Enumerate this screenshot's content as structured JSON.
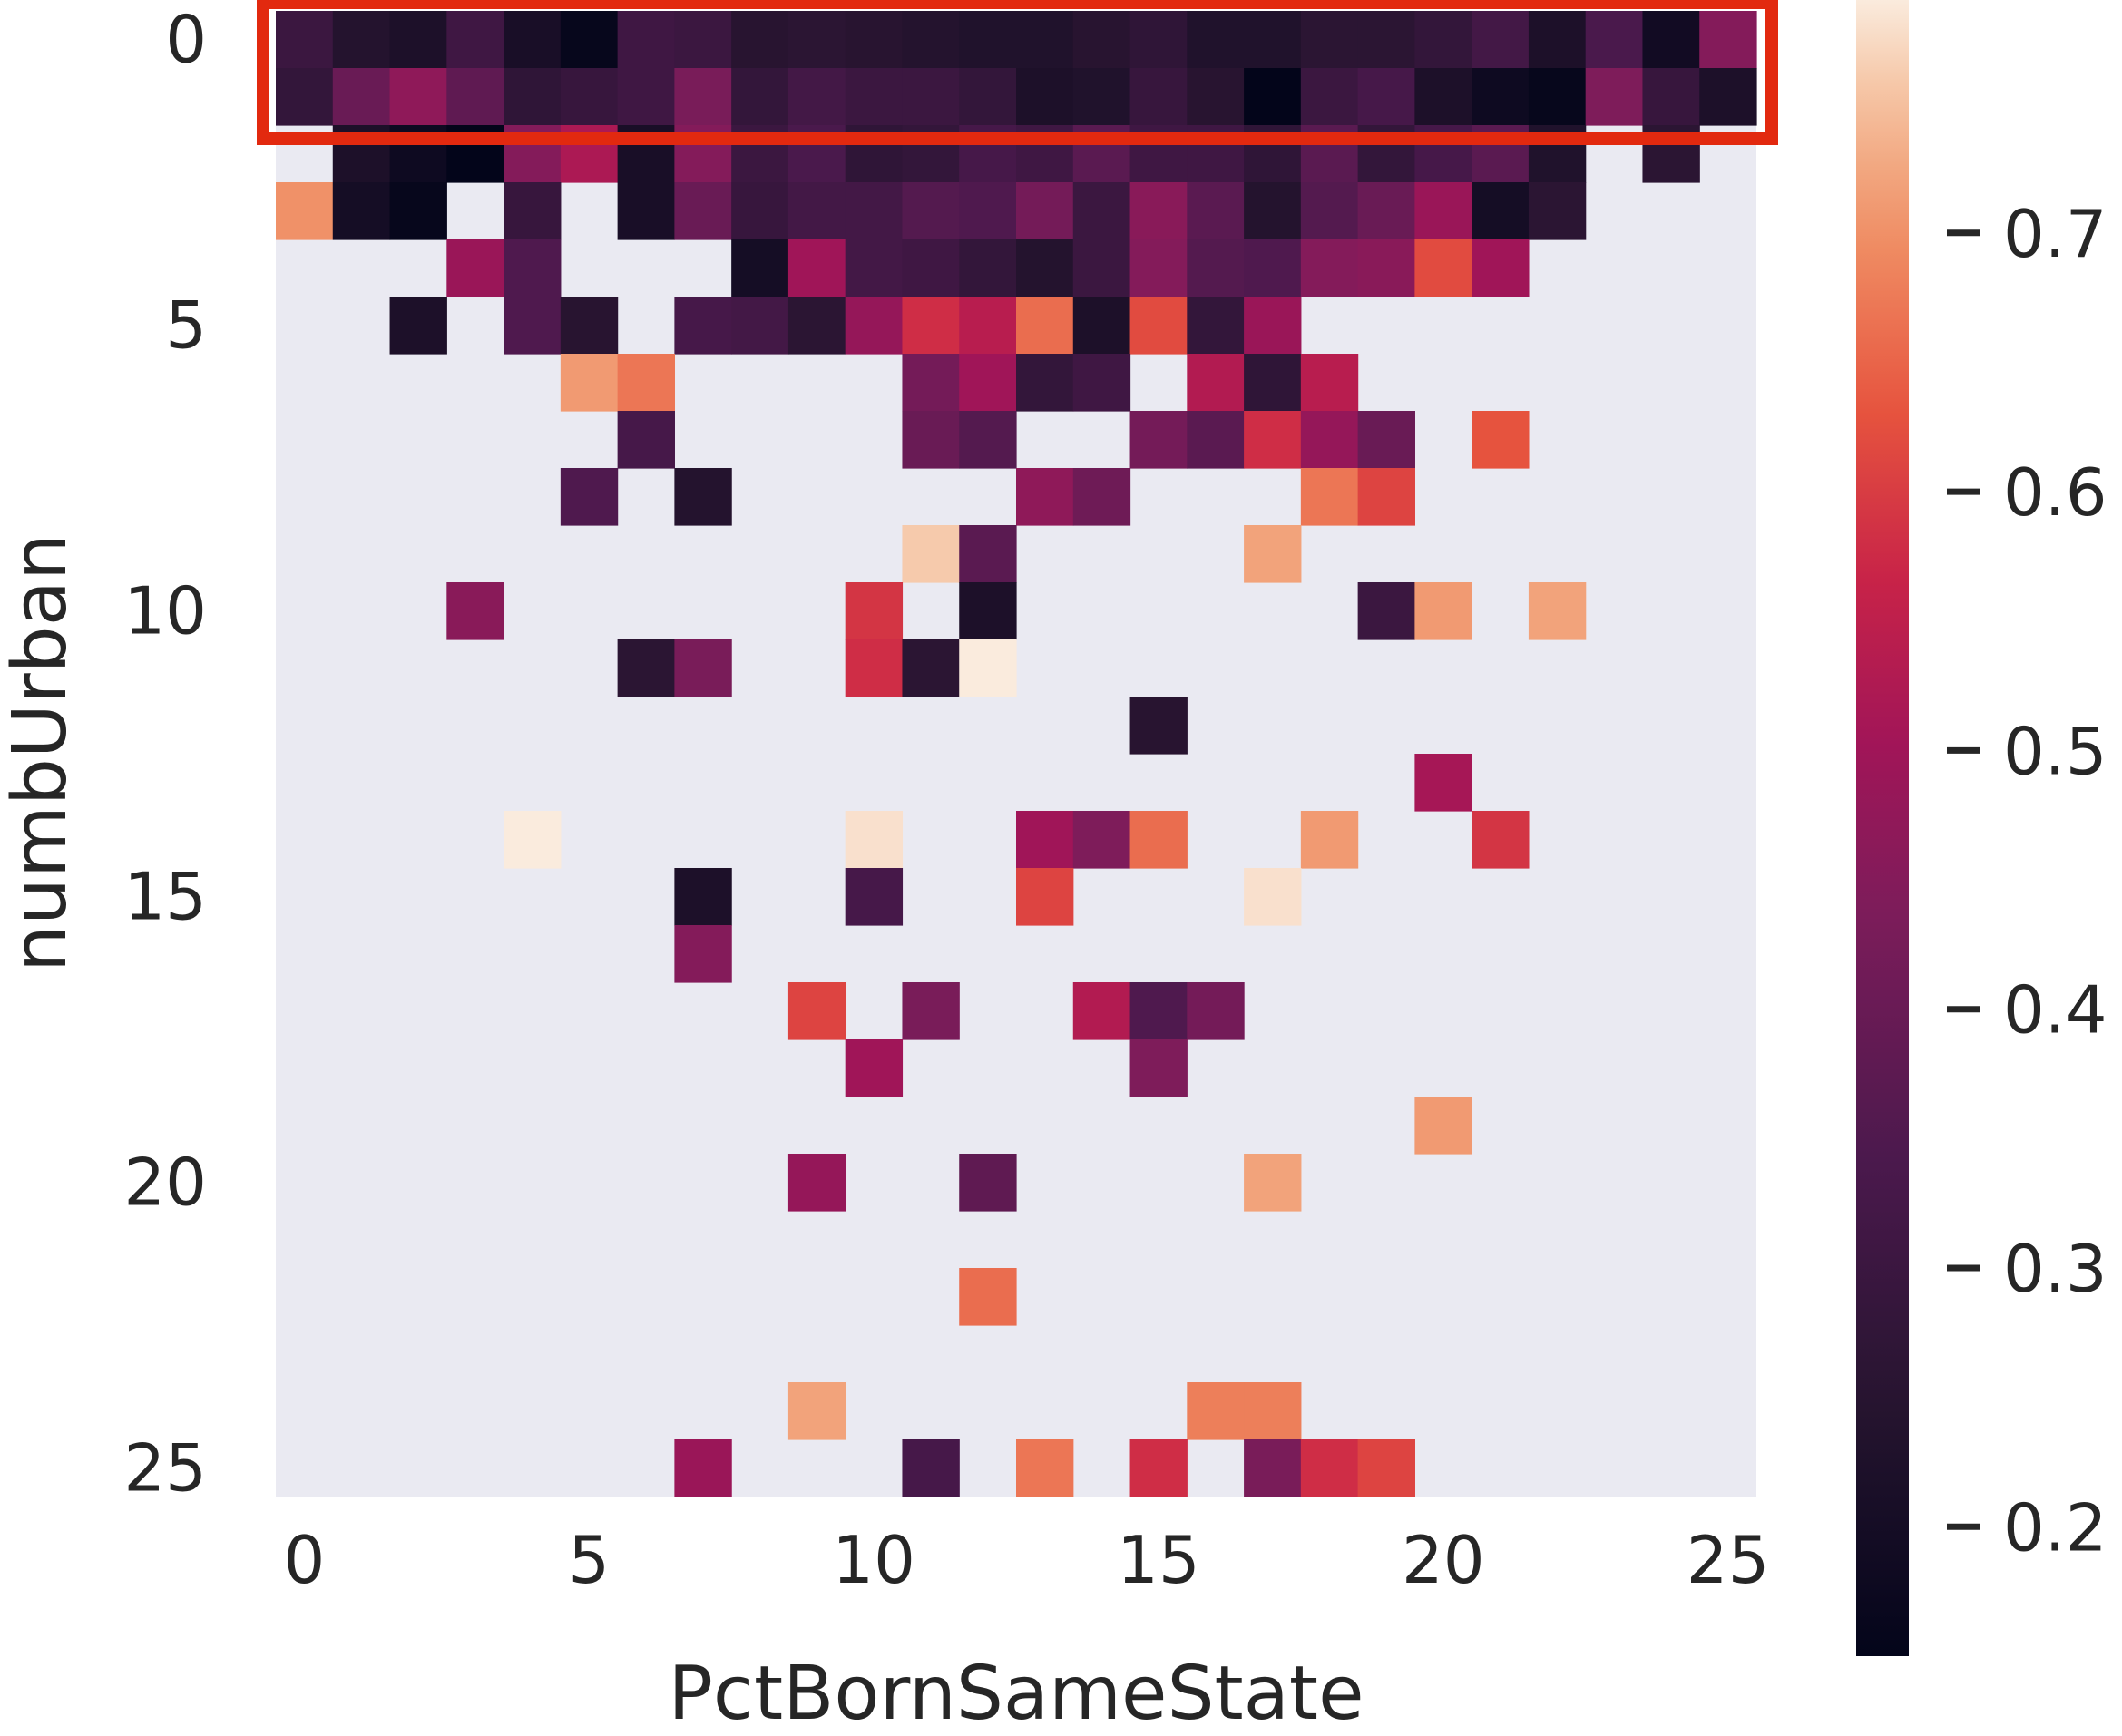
{
  "chart_data": {
    "type": "heatmap",
    "xlabel": "PctBornSameState",
    "ylabel": "numbUrban",
    "x_ticks": [
      0,
      5,
      10,
      15,
      20,
      25
    ],
    "y_ticks": [
      0,
      5,
      10,
      15,
      20,
      25
    ],
    "colorbar": {
      "ticks": [
        0.2,
        0.3,
        0.4,
        0.5,
        0.6,
        0.7
      ],
      "tick_labels": [
        "0.2",
        "0.3",
        "0.4",
        "0.5",
        "0.6",
        "0.7"
      ],
      "range": [
        0.15,
        0.79
      ],
      "colormap": "rocket"
    },
    "grid": false,
    "missing_color": "#eaeaf2",
    "highlight": {
      "rows": [
        0,
        1
      ],
      "color": "#e2290f",
      "label": ""
    },
    "n_cols": 26,
    "n_rows": 26,
    "cells": [
      {
        "x": 0,
        "y": 0,
        "v": 0.3
      },
      {
        "x": 1,
        "y": 0,
        "v": 0.24
      },
      {
        "x": 2,
        "y": 0,
        "v": 0.22
      },
      {
        "x": 3,
        "y": 0,
        "v": 0.31
      },
      {
        "x": 4,
        "y": 0,
        "v": 0.21
      },
      {
        "x": 5,
        "y": 0,
        "v": 0.16
      },
      {
        "x": 6,
        "y": 0,
        "v": 0.31
      },
      {
        "x": 7,
        "y": 0,
        "v": 0.3
      },
      {
        "x": 8,
        "y": 0,
        "v": 0.25
      },
      {
        "x": 9,
        "y": 0,
        "v": 0.26
      },
      {
        "x": 10,
        "y": 0,
        "v": 0.25
      },
      {
        "x": 11,
        "y": 0,
        "v": 0.24
      },
      {
        "x": 12,
        "y": 0,
        "v": 0.23
      },
      {
        "x": 13,
        "y": 0,
        "v": 0.23
      },
      {
        "x": 14,
        "y": 0,
        "v": 0.25
      },
      {
        "x": 15,
        "y": 0,
        "v": 0.27
      },
      {
        "x": 16,
        "y": 0,
        "v": 0.23
      },
      {
        "x": 17,
        "y": 0,
        "v": 0.23
      },
      {
        "x": 18,
        "y": 0,
        "v": 0.26
      },
      {
        "x": 19,
        "y": 0,
        "v": 0.26
      },
      {
        "x": 20,
        "y": 0,
        "v": 0.28
      },
      {
        "x": 21,
        "y": 0,
        "v": 0.32
      },
      {
        "x": 22,
        "y": 0,
        "v": 0.22
      },
      {
        "x": 23,
        "y": 0,
        "v": 0.34
      },
      {
        "x": 24,
        "y": 0,
        "v": 0.19
      },
      {
        "x": 25,
        "y": 0,
        "v": 0.45
      },
      {
        "x": 0,
        "y": 1,
        "v": 0.28
      },
      {
        "x": 1,
        "y": 1,
        "v": 0.4
      },
      {
        "x": 2,
        "y": 1,
        "v": 0.47
      },
      {
        "x": 3,
        "y": 1,
        "v": 0.38
      },
      {
        "x": 4,
        "y": 1,
        "v": 0.27
      },
      {
        "x": 5,
        "y": 1,
        "v": 0.29
      },
      {
        "x": 6,
        "y": 1,
        "v": 0.31
      },
      {
        "x": 7,
        "y": 1,
        "v": 0.43
      },
      {
        "x": 8,
        "y": 1,
        "v": 0.28
      },
      {
        "x": 9,
        "y": 1,
        "v": 0.32
      },
      {
        "x": 10,
        "y": 1,
        "v": 0.3
      },
      {
        "x": 11,
        "y": 1,
        "v": 0.3
      },
      {
        "x": 12,
        "y": 1,
        "v": 0.28
      },
      {
        "x": 13,
        "y": 1,
        "v": 0.22
      },
      {
        "x": 14,
        "y": 1,
        "v": 0.23
      },
      {
        "x": 15,
        "y": 1,
        "v": 0.29
      },
      {
        "x": 16,
        "y": 1,
        "v": 0.25
      },
      {
        "x": 17,
        "y": 1,
        "v": 0.15
      },
      {
        "x": 18,
        "y": 1,
        "v": 0.3
      },
      {
        "x": 19,
        "y": 1,
        "v": 0.33
      },
      {
        "x": 20,
        "y": 1,
        "v": 0.22
      },
      {
        "x": 21,
        "y": 1,
        "v": 0.18
      },
      {
        "x": 22,
        "y": 1,
        "v": 0.16
      },
      {
        "x": 23,
        "y": 1,
        "v": 0.44
      },
      {
        "x": 24,
        "y": 1,
        "v": 0.29
      },
      {
        "x": 25,
        "y": 1,
        "v": 0.22
      },
      {
        "x": 1,
        "y": 2,
        "v": 0.22
      },
      {
        "x": 2,
        "y": 2,
        "v": 0.18
      },
      {
        "x": 3,
        "y": 2,
        "v": 0.15
      },
      {
        "x": 4,
        "y": 2,
        "v": 0.45
      },
      {
        "x": 5,
        "y": 2,
        "v": 0.52
      },
      {
        "x": 6,
        "y": 2,
        "v": 0.21
      },
      {
        "x": 7,
        "y": 2,
        "v": 0.45
      },
      {
        "x": 8,
        "y": 2,
        "v": 0.3
      },
      {
        "x": 9,
        "y": 2,
        "v": 0.34
      },
      {
        "x": 10,
        "y": 2,
        "v": 0.27
      },
      {
        "x": 11,
        "y": 2,
        "v": 0.28
      },
      {
        "x": 12,
        "y": 2,
        "v": 0.33
      },
      {
        "x": 13,
        "y": 2,
        "v": 0.31
      },
      {
        "x": 14,
        "y": 2,
        "v": 0.37
      },
      {
        "x": 15,
        "y": 2,
        "v": 0.31
      },
      {
        "x": 16,
        "y": 2,
        "v": 0.31
      },
      {
        "x": 17,
        "y": 2,
        "v": 0.27
      },
      {
        "x": 18,
        "y": 2,
        "v": 0.37
      },
      {
        "x": 19,
        "y": 2,
        "v": 0.28
      },
      {
        "x": 20,
        "y": 2,
        "v": 0.33
      },
      {
        "x": 21,
        "y": 2,
        "v": 0.37
      },
      {
        "x": 22,
        "y": 2,
        "v": 0.23
      },
      {
        "x": 24,
        "y": 2,
        "v": 0.26
      },
      {
        "x": 0,
        "y": 3,
        "v": 0.7
      },
      {
        "x": 1,
        "y": 3,
        "v": 0.2
      },
      {
        "x": 2,
        "y": 3,
        "v": 0.16
      },
      {
        "x": 4,
        "y": 3,
        "v": 0.29
      },
      {
        "x": 6,
        "y": 3,
        "v": 0.21
      },
      {
        "x": 7,
        "y": 3,
        "v": 0.4
      },
      {
        "x": 8,
        "y": 3,
        "v": 0.29
      },
      {
        "x": 9,
        "y": 3,
        "v": 0.32
      },
      {
        "x": 10,
        "y": 3,
        "v": 0.32
      },
      {
        "x": 11,
        "y": 3,
        "v": 0.36
      },
      {
        "x": 12,
        "y": 3,
        "v": 0.35
      },
      {
        "x": 13,
        "y": 3,
        "v": 0.42
      },
      {
        "x": 14,
        "y": 3,
        "v": 0.3
      },
      {
        "x": 15,
        "y": 3,
        "v": 0.46
      },
      {
        "x": 16,
        "y": 3,
        "v": 0.37
      },
      {
        "x": 17,
        "y": 3,
        "v": 0.24
      },
      {
        "x": 18,
        "y": 3,
        "v": 0.36
      },
      {
        "x": 19,
        "y": 3,
        "v": 0.4
      },
      {
        "x": 20,
        "y": 3,
        "v": 0.49
      },
      {
        "x": 21,
        "y": 3,
        "v": 0.2
      },
      {
        "x": 22,
        "y": 3,
        "v": 0.26
      },
      {
        "x": 3,
        "y": 4,
        "v": 0.49
      },
      {
        "x": 4,
        "y": 4,
        "v": 0.35
      },
      {
        "x": 8,
        "y": 4,
        "v": 0.2
      },
      {
        "x": 9,
        "y": 4,
        "v": 0.5
      },
      {
        "x": 10,
        "y": 4,
        "v": 0.32
      },
      {
        "x": 11,
        "y": 4,
        "v": 0.31
      },
      {
        "x": 12,
        "y": 4,
        "v": 0.28
      },
      {
        "x": 13,
        "y": 4,
        "v": 0.24
      },
      {
        "x": 14,
        "y": 4,
        "v": 0.3
      },
      {
        "x": 15,
        "y": 4,
        "v": 0.45
      },
      {
        "x": 16,
        "y": 4,
        "v": 0.36
      },
      {
        "x": 17,
        "y": 4,
        "v": 0.35
      },
      {
        "x": 18,
        "y": 4,
        "v": 0.45
      },
      {
        "x": 19,
        "y": 4,
        "v": 0.46
      },
      {
        "x": 20,
        "y": 4,
        "v": 0.62
      },
      {
        "x": 21,
        "y": 4,
        "v": 0.5
      },
      {
        "x": 2,
        "y": 5,
        "v": 0.22
      },
      {
        "x": 4,
        "y": 5,
        "v": 0.35
      },
      {
        "x": 5,
        "y": 5,
        "v": 0.25
      },
      {
        "x": 7,
        "y": 5,
        "v": 0.33
      },
      {
        "x": 8,
        "y": 5,
        "v": 0.32
      },
      {
        "x": 9,
        "y": 5,
        "v": 0.26
      },
      {
        "x": 10,
        "y": 5,
        "v": 0.48
      },
      {
        "x": 11,
        "y": 5,
        "v": 0.58
      },
      {
        "x": 12,
        "y": 5,
        "v": 0.54
      },
      {
        "x": 13,
        "y": 5,
        "v": 0.66
      },
      {
        "x": 14,
        "y": 5,
        "v": 0.22
      },
      {
        "x": 15,
        "y": 5,
        "v": 0.62
      },
      {
        "x": 16,
        "y": 5,
        "v": 0.28
      },
      {
        "x": 17,
        "y": 5,
        "v": 0.49
      },
      {
        "x": 5,
        "y": 6,
        "v": 0.71
      },
      {
        "x": 6,
        "y": 6,
        "v": 0.67
      },
      {
        "x": 11,
        "y": 6,
        "v": 0.42
      },
      {
        "x": 12,
        "y": 6,
        "v": 0.5
      },
      {
        "x": 13,
        "y": 6,
        "v": 0.28
      },
      {
        "x": 14,
        "y": 6,
        "v": 0.31
      },
      {
        "x": 16,
        "y": 6,
        "v": 0.53
      },
      {
        "x": 17,
        "y": 6,
        "v": 0.27
      },
      {
        "x": 18,
        "y": 6,
        "v": 0.54
      },
      {
        "x": 6,
        "y": 7,
        "v": 0.33
      },
      {
        "x": 11,
        "y": 7,
        "v": 0.4
      },
      {
        "x": 12,
        "y": 7,
        "v": 0.36
      },
      {
        "x": 15,
        "y": 7,
        "v": 0.42
      },
      {
        "x": 16,
        "y": 7,
        "v": 0.37
      },
      {
        "x": 17,
        "y": 7,
        "v": 0.58
      },
      {
        "x": 18,
        "y": 7,
        "v": 0.48
      },
      {
        "x": 19,
        "y": 7,
        "v": 0.4
      },
      {
        "x": 21,
        "y": 7,
        "v": 0.63
      },
      {
        "x": 5,
        "y": 8,
        "v": 0.35
      },
      {
        "x": 7,
        "y": 8,
        "v": 0.24
      },
      {
        "x": 13,
        "y": 8,
        "v": 0.47
      },
      {
        "x": 14,
        "y": 8,
        "v": 0.41
      },
      {
        "x": 18,
        "y": 8,
        "v": 0.67
      },
      {
        "x": 19,
        "y": 8,
        "v": 0.61
      },
      {
        "x": 11,
        "y": 9,
        "v": 0.76
      },
      {
        "x": 12,
        "y": 9,
        "v": 0.37
      },
      {
        "x": 17,
        "y": 9,
        "v": 0.72
      },
      {
        "x": 3,
        "y": 10,
        "v": 0.46
      },
      {
        "x": 10,
        "y": 10,
        "v": 0.59
      },
      {
        "x": 12,
        "y": 10,
        "v": 0.22
      },
      {
        "x": 19,
        "y": 10,
        "v": 0.3
      },
      {
        "x": 20,
        "y": 10,
        "v": 0.71
      },
      {
        "x": 22,
        "y": 10,
        "v": 0.72
      },
      {
        "x": 6,
        "y": 11,
        "v": 0.26
      },
      {
        "x": 7,
        "y": 11,
        "v": 0.43
      },
      {
        "x": 10,
        "y": 11,
        "v": 0.58
      },
      {
        "x": 11,
        "y": 11,
        "v": 0.26
      },
      {
        "x": 12,
        "y": 11,
        "v": 0.79
      },
      {
        "x": 15,
        "y": 12,
        "v": 0.25
      },
      {
        "x": 20,
        "y": 13,
        "v": 0.51
      },
      {
        "x": 4,
        "y": 14,
        "v": 0.79
      },
      {
        "x": 10,
        "y": 14,
        "v": 0.78
      },
      {
        "x": 13,
        "y": 14,
        "v": 0.5
      },
      {
        "x": 14,
        "y": 14,
        "v": 0.44
      },
      {
        "x": 15,
        "y": 14,
        "v": 0.66
      },
      {
        "x": 18,
        "y": 14,
        "v": 0.71
      },
      {
        "x": 21,
        "y": 14,
        "v": 0.59
      },
      {
        "x": 7,
        "y": 15,
        "v": 0.22
      },
      {
        "x": 10,
        "y": 15,
        "v": 0.33
      },
      {
        "x": 13,
        "y": 15,
        "v": 0.61
      },
      {
        "x": 17,
        "y": 15,
        "v": 0.78
      },
      {
        "x": 7,
        "y": 16,
        "v": 0.45
      },
      {
        "x": 9,
        "y": 17,
        "v": 0.61
      },
      {
        "x": 11,
        "y": 17,
        "v": 0.43
      },
      {
        "x": 14,
        "y": 17,
        "v": 0.53
      },
      {
        "x": 15,
        "y": 17,
        "v": 0.35
      },
      {
        "x": 16,
        "y": 17,
        "v": 0.42
      },
      {
        "x": 10,
        "y": 18,
        "v": 0.5
      },
      {
        "x": 15,
        "y": 18,
        "v": 0.44
      },
      {
        "x": 20,
        "y": 19,
        "v": 0.71
      },
      {
        "x": 9,
        "y": 20,
        "v": 0.48
      },
      {
        "x": 12,
        "y": 20,
        "v": 0.38
      },
      {
        "x": 17,
        "y": 20,
        "v": 0.72
      },
      {
        "x": 12,
        "y": 22,
        "v": 0.66
      },
      {
        "x": 9,
        "y": 24,
        "v": 0.72
      },
      {
        "x": 16,
        "y": 24,
        "v": 0.68
      },
      {
        "x": 17,
        "y": 24,
        "v": 0.68
      },
      {
        "x": 7,
        "y": 25,
        "v": 0.49
      },
      {
        "x": 11,
        "y": 25,
        "v": 0.33
      },
      {
        "x": 13,
        "y": 25,
        "v": 0.67
      },
      {
        "x": 15,
        "y": 25,
        "v": 0.58
      },
      {
        "x": 17,
        "y": 25,
        "v": 0.43
      },
      {
        "x": 18,
        "y": 25,
        "v": 0.58
      },
      {
        "x": 19,
        "y": 25,
        "v": 0.61
      }
    ]
  }
}
